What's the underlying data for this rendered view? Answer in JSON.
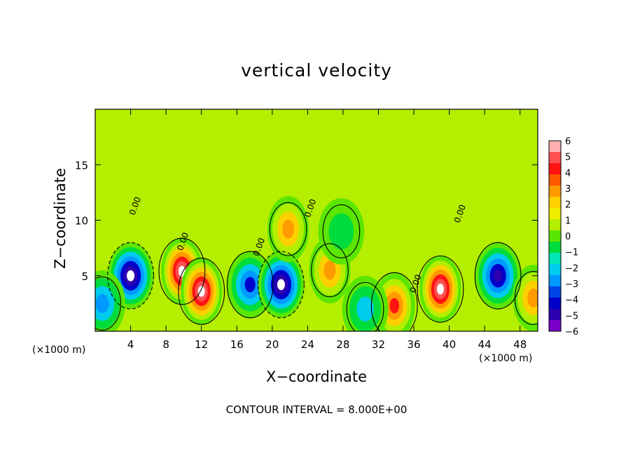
{
  "chart_data": {
    "type": "heatmap",
    "title": "vertical velocity",
    "xlabel": "X−coordinate",
    "ylabel": "Z−coordinate",
    "x_unit": "(×1000 m)",
    "footnote": "CONTOUR INTERVAL = 8.000E+00",
    "xlim": [
      0,
      50
    ],
    "ylim": [
      0,
      20
    ],
    "x_ticks": [
      4,
      8,
      12,
      16,
      20,
      24,
      28,
      32,
      36,
      40,
      44,
      48
    ],
    "y_ticks": [
      5,
      10,
      15
    ],
    "colorbar": {
      "min": -6,
      "max": 6,
      "ticks": [
        6,
        5,
        4,
        3,
        2,
        1,
        0,
        -1,
        -2,
        -3,
        -4,
        -5,
        -6
      ],
      "colors": [
        "#ffb0b0",
        "#ff5050",
        "#ff1414",
        "#ff5a00",
        "#ff9a00",
        "#ffd000",
        "#eeee00",
        "#b4ee00",
        "#5ae600",
        "#00dc3c",
        "#00e6b4",
        "#00ccee",
        "#0099ff",
        "#0044e6",
        "#0000cc",
        "#2a00b0",
        "#7a00c8"
      ]
    },
    "features": [
      {
        "kind": "downdraft",
        "x": 4.0,
        "z": 5.0,
        "strength": -6
      },
      {
        "kind": "updraft",
        "x": 9.8,
        "z": 5.4,
        "strength": 6
      },
      {
        "kind": "updraft",
        "x": 12.0,
        "z": 3.6,
        "strength": 6
      },
      {
        "kind": "downdraft",
        "x": 17.5,
        "z": 4.2,
        "strength": -4
      },
      {
        "kind": "downdraft",
        "x": 21.0,
        "z": 4.2,
        "strength": -6
      },
      {
        "kind": "updraft",
        "x": 21.8,
        "z": 9.2,
        "strength": 3
      },
      {
        "kind": "updraft",
        "x": 26.5,
        "z": 5.5,
        "strength": 3
      },
      {
        "kind": "downdraft",
        "x": 27.8,
        "z": 9.0,
        "strength": -1
      },
      {
        "kind": "updraft",
        "x": 33.8,
        "z": 2.3,
        "strength": 4
      },
      {
        "kind": "downdraft",
        "x": 30.5,
        "z": 2.0,
        "strength": -2
      },
      {
        "kind": "updraft",
        "x": 39.0,
        "z": 3.8,
        "strength": 6
      },
      {
        "kind": "downdraft",
        "x": 45.5,
        "z": 5.0,
        "strength": -5
      },
      {
        "kind": "downdraft",
        "x": 0.8,
        "z": 2.5,
        "strength": -3
      },
      {
        "kind": "updraft",
        "x": 49.5,
        "z": 3.0,
        "strength": 3
      }
    ],
    "contour_labels": [
      "0.00"
    ]
  }
}
